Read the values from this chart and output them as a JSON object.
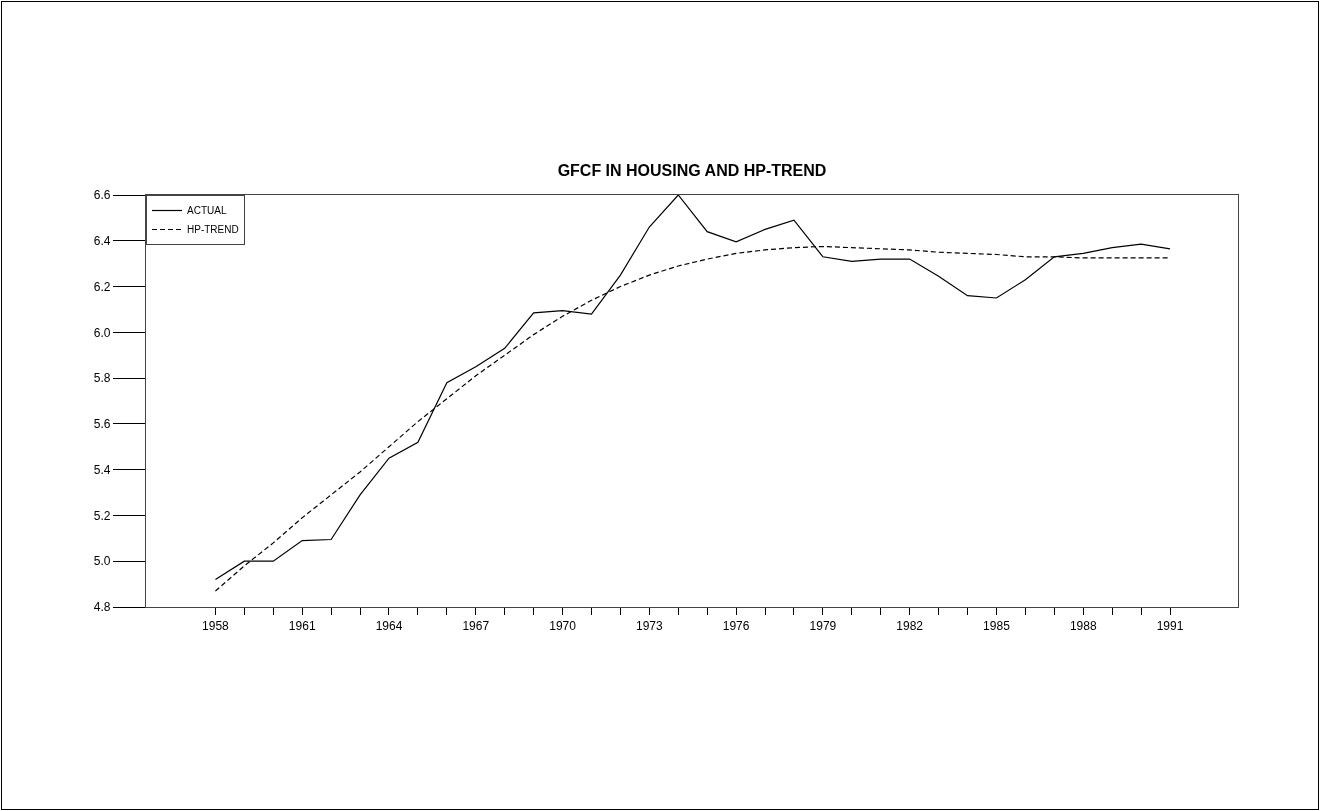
{
  "chart_data": {
    "type": "line",
    "title": "GFCF IN HOUSING AND HP-TREND",
    "x": [
      1958,
      1959,
      1960,
      1961,
      1962,
      1963,
      1964,
      1965,
      1966,
      1967,
      1968,
      1969,
      1970,
      1971,
      1972,
      1973,
      1974,
      1975,
      1976,
      1977,
      1978,
      1979,
      1980,
      1981,
      1982,
      1983,
      1984,
      1985,
      1986,
      1987,
      1988,
      1989,
      1990,
      1991
    ],
    "series": [
      {
        "name": "ACTUAL",
        "color": "#000000",
        "line_style": "solid",
        "values": [
          4.92,
          5.0,
          5.0,
          5.09,
          5.095,
          5.29,
          5.45,
          5.52,
          5.78,
          5.85,
          5.93,
          6.085,
          6.095,
          6.08,
          6.25,
          6.46,
          6.6,
          6.44,
          6.395,
          6.45,
          6.49,
          6.33,
          6.31,
          6.32,
          6.32,
          6.245,
          6.16,
          6.15,
          6.23,
          6.33,
          6.345,
          6.37,
          6.385,
          6.365
        ]
      },
      {
        "name": "HP-TREND",
        "color": "#000000",
        "line_style": "dashed",
        "values": [
          4.87,
          4.98,
          5.08,
          5.19,
          5.29,
          5.39,
          5.5,
          5.61,
          5.71,
          5.81,
          5.9,
          5.99,
          6.07,
          6.14,
          6.2,
          6.25,
          6.29,
          6.32,
          6.345,
          6.36,
          6.37,
          6.375,
          6.37,
          6.365,
          6.36,
          6.35,
          6.345,
          6.34,
          6.33,
          6.33,
          6.325,
          6.325,
          6.325,
          6.325
        ]
      }
    ],
    "xlim": [
      1955.6,
      1993.35
    ],
    "xticks": [
      1958,
      {
        "value": 1959,
        "label": null
      },
      {
        "value": 1960,
        "label": null
      },
      1961,
      {
        "value": 1962,
        "label": null
      },
      {
        "value": 1963,
        "label": null
      },
      1964,
      {
        "value": 1965,
        "label": null
      },
      {
        "value": 1966,
        "label": null
      },
      1967,
      {
        "value": 1968,
        "label": null
      },
      {
        "value": 1969,
        "label": null
      },
      1970,
      {
        "value": 1971,
        "label": null
      },
      {
        "value": 1972,
        "label": null
      },
      1973,
      {
        "value": 1974,
        "label": null
      },
      {
        "value": 1975,
        "label": null
      },
      1976,
      {
        "value": 1977,
        "label": null
      },
      {
        "value": 1978,
        "label": null
      },
      1979,
      {
        "value": 1980,
        "label": null
      },
      {
        "value": 1981,
        "label": null
      },
      1982,
      {
        "value": 1983,
        "label": null
      },
      {
        "value": 1984,
        "label": null
      },
      1985,
      {
        "value": 1986,
        "label": null
      },
      {
        "value": 1987,
        "label": null
      },
      1988,
      {
        "value": 1989,
        "label": null
      },
      {
        "value": 1990,
        "label": null
      },
      1991
    ],
    "ylim": [
      4.8,
      6.6
    ],
    "yticks": [
      {
        "value": 4.8,
        "label": "4.8"
      },
      {
        "value": 5.0,
        "label": "5.0"
      },
      {
        "value": 5.2,
        "label": "5.2"
      },
      {
        "value": 5.4,
        "label": "5.4"
      },
      {
        "value": 5.6,
        "label": "5.6"
      },
      {
        "value": 5.8,
        "label": "5.8"
      },
      {
        "value": 6.0,
        "label": "6.0"
      },
      {
        "value": 6.2,
        "label": "6.2"
      },
      {
        "value": 6.4,
        "label": "6.4"
      },
      {
        "value": 6.6,
        "label": "6.6"
      }
    ],
    "grid": false,
    "legend": "top left",
    "marker": "none"
  }
}
